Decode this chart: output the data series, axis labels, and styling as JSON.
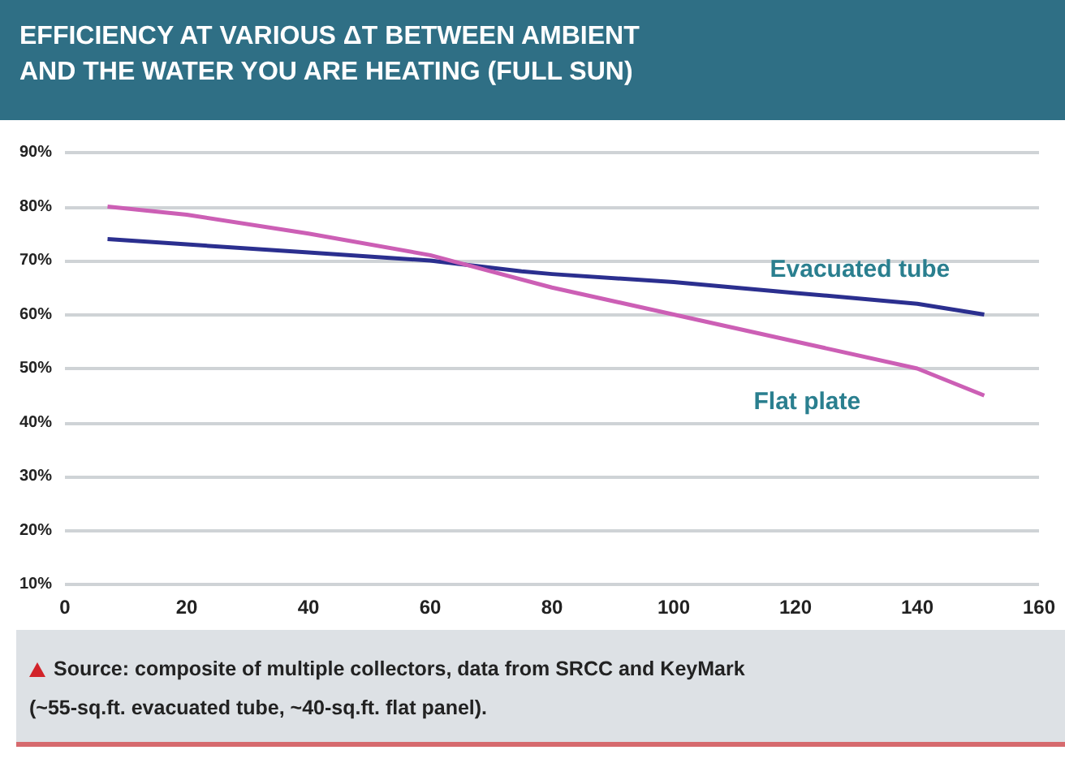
{
  "chart_data": {
    "type": "line",
    "title": "EFFICIENCY AT VARIOUS ΔT BETWEEN AMBIENT AND THE WATER YOU ARE HEATING (FULL SUN)",
    "annotations": [
      "Source: composite of multiple collectors, data from SRCC and KeyMark (~55-sq.ft. evacuated tube, ~40-sq.ft. flat panel)."
    ],
    "series": [
      {
        "name": "Evacuated tube",
        "color": "#2b2f8f",
        "x": [
          7,
          20,
          40,
          60,
          75,
          80,
          100,
          120,
          140,
          151
        ],
        "values": [
          74,
          73,
          71.5,
          70,
          68,
          67.5,
          66,
          64,
          62,
          60
        ]
      },
      {
        "name": "Flat plate",
        "color": "#cc5fb5",
        "x": [
          7,
          20,
          40,
          60,
          70,
          80,
          100,
          120,
          140,
          151
        ],
        "values": [
          80,
          78.5,
          75,
          71,
          68,
          65,
          60,
          55,
          50,
          45
        ]
      }
    ],
    "xlim": [
      0,
      160
    ],
    "xticks": [
      0,
      20,
      40,
      60,
      80,
      100,
      120,
      140,
      160
    ],
    "ylim": [
      10,
      90
    ],
    "yticks": [
      {
        "value": 10,
        "label": "10%"
      },
      {
        "value": 20,
        "label": "20%"
      },
      {
        "value": 30,
        "label": "30%"
      },
      {
        "value": 40,
        "label": "40%"
      },
      {
        "value": 50,
        "label": "50%"
      },
      {
        "value": 60,
        "label": "60%"
      },
      {
        "value": 70,
        "label": "70%"
      },
      {
        "value": 80,
        "label": "80%"
      },
      {
        "value": 90,
        "label": "90%"
      }
    ],
    "grid": "y",
    "marker": "none",
    "line_style": "solid",
    "legend": false
  }
}
